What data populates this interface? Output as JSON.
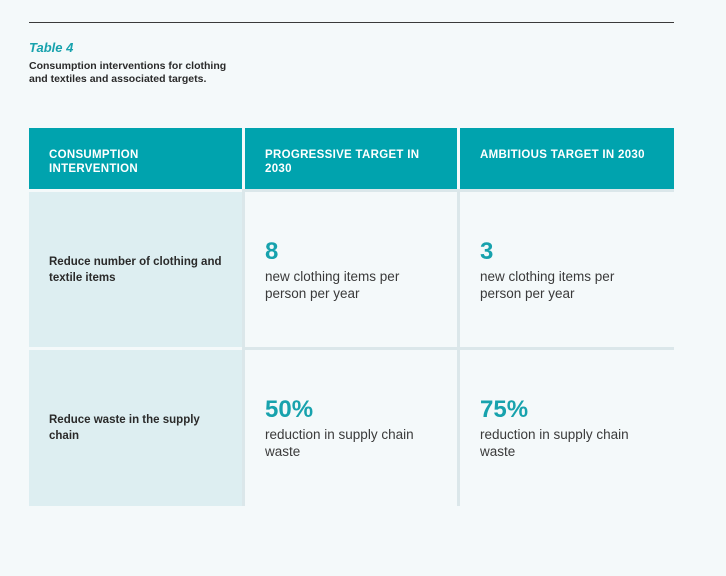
{
  "caption": {
    "number": "Table 4",
    "title": "Consumption interventions for clothing and textiles and associated targets."
  },
  "table": {
    "headers": [
      "CONSUMPTION INTERVENTION",
      "PROGRESSIVE TARGET IN 2030",
      "AMBITIOUS TARGET IN 2030"
    ],
    "rows": [
      {
        "intervention": "Reduce number of clothing and textile items",
        "progressive": {
          "value": "8",
          "description": "new clothing items per person per year"
        },
        "ambitious": {
          "value": "3",
          "description": "new clothing items per person per year"
        }
      },
      {
        "intervention": "Reduce waste in the supply chain",
        "progressive": {
          "value": "50%",
          "description": "reduction in supply chain waste"
        },
        "ambitious": {
          "value": "75%",
          "description": "reduction in supply chain waste"
        }
      }
    ]
  },
  "colors": {
    "header_background": "#00a3ae",
    "accent_text": "#17a2ad",
    "row_label_background": "#ddeef1",
    "page_background": "#f4f9fa"
  }
}
